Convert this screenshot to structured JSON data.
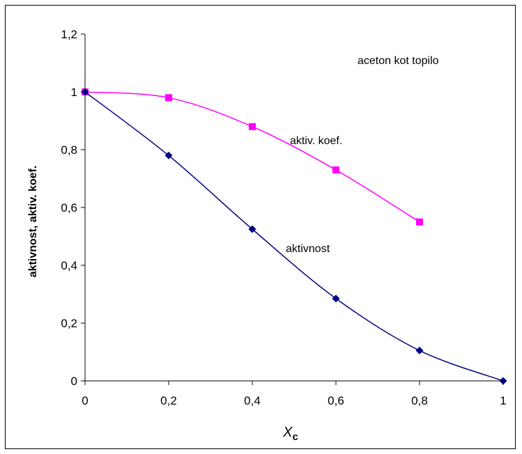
{
  "chart_data": {
    "type": "line",
    "xlabel": "X",
    "xlabel_sub": "c",
    "ylabel": "aktivnost, aktiv. koef.",
    "xlim": [
      0,
      1
    ],
    "ylim": [
      0,
      1.2
    ],
    "x_ticks": [
      "0",
      "0,2",
      "0,4",
      "0,6",
      "0,8",
      "1"
    ],
    "y_ticks": [
      "0",
      "0,2",
      "0,4",
      "0,6",
      "0,8",
      "1",
      "1,2"
    ],
    "grid": false,
    "legend": "none",
    "annotations": {
      "solvent": "aceton kot topilo",
      "coef_label": "aktiv. koef.",
      "activity_label": "aktivnost"
    },
    "series": [
      {
        "name": "aktiv. koef.",
        "color": "#ff00ff",
        "marker": "square",
        "x": [
          0,
          0.2,
          0.4,
          0.6,
          0.8
        ],
        "values": [
          1.0,
          0.98,
          0.88,
          0.73,
          0.55
        ]
      },
      {
        "name": "aktivnost",
        "color": "#000080",
        "marker": "diamond",
        "x": [
          0,
          0.2,
          0.4,
          0.6,
          0.8,
          1.0
        ],
        "values": [
          1.0,
          0.78,
          0.525,
          0.285,
          0.105,
          0.0
        ]
      }
    ]
  }
}
